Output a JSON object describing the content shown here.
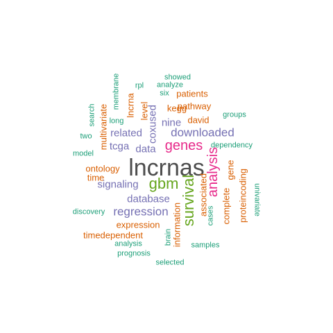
{
  "colors": {
    "dark": "#4d4d4d",
    "green": "#1b9e77",
    "orange": "#d95f02",
    "purple": "#7570b3",
    "magenta": "#e7298a",
    "lime": "#66a61e"
  },
  "words": [
    {
      "text": "lncrnas",
      "color": "dark",
      "weight": 6
    },
    {
      "text": "genes",
      "color": "magenta",
      "weight": 3
    },
    {
      "text": "analysis",
      "color": "magenta",
      "weight": 3
    },
    {
      "text": "gbm",
      "color": "lime",
      "weight": 3
    },
    {
      "text": "survival",
      "color": "lime",
      "weight": 3
    },
    {
      "text": "downloaded",
      "color": "purple",
      "weight": 2
    },
    {
      "text": "regression",
      "color": "purple",
      "weight": 2
    },
    {
      "text": "database",
      "color": "purple",
      "weight": 2
    },
    {
      "text": "signaling",
      "color": "purple",
      "weight": 2
    },
    {
      "text": "related",
      "color": "purple",
      "weight": 2
    },
    {
      "text": "coxused",
      "color": "purple",
      "weight": 2
    },
    {
      "text": "nine",
      "color": "purple",
      "weight": 2
    },
    {
      "text": "tcga",
      "color": "purple",
      "weight": 2
    },
    {
      "text": "data",
      "color": "purple",
      "weight": 2
    },
    {
      "text": "expression",
      "color": "orange",
      "weight": 1
    },
    {
      "text": "timedependent",
      "color": "orange",
      "weight": 1
    },
    {
      "text": "ontology",
      "color": "orange",
      "weight": 1
    },
    {
      "text": "time",
      "color": "orange",
      "weight": 1
    },
    {
      "text": "patients",
      "color": "orange",
      "weight": 1
    },
    {
      "text": "pathway",
      "color": "orange",
      "weight": 1
    },
    {
      "text": "kegg",
      "color": "orange",
      "weight": 1
    },
    {
      "text": "david",
      "color": "orange",
      "weight": 1
    },
    {
      "text": "level",
      "color": "orange",
      "weight": 1
    },
    {
      "text": "lncrna",
      "color": "orange",
      "weight": 1
    },
    {
      "text": "multivariate",
      "color": "orange",
      "weight": 1
    },
    {
      "text": "gene",
      "color": "orange",
      "weight": 1
    },
    {
      "text": "complete",
      "color": "orange",
      "weight": 1
    },
    {
      "text": "proteincoding",
      "color": "orange",
      "weight": 1
    },
    {
      "text": "information",
      "color": "orange",
      "weight": 1
    },
    {
      "text": "associated",
      "color": "orange",
      "weight": 1
    },
    {
      "text": "showed",
      "color": "green",
      "weight": 0
    },
    {
      "text": "analyze",
      "color": "green",
      "weight": 0
    },
    {
      "text": "rpl",
      "color": "green",
      "weight": 0
    },
    {
      "text": "six",
      "color": "green",
      "weight": 0
    },
    {
      "text": "membrane",
      "color": "green",
      "weight": 0
    },
    {
      "text": "search",
      "color": "green",
      "weight": 0
    },
    {
      "text": "long",
      "color": "green",
      "weight": 0
    },
    {
      "text": "groups",
      "color": "green",
      "weight": 0
    },
    {
      "text": "two",
      "color": "green",
      "weight": 0
    },
    {
      "text": "dependency",
      "color": "green",
      "weight": 0
    },
    {
      "text": "model",
      "color": "green",
      "weight": 0
    },
    {
      "text": "univariate",
      "color": "green",
      "weight": 0
    },
    {
      "text": "discovery",
      "color": "green",
      "weight": 0
    },
    {
      "text": "cases",
      "color": "green",
      "weight": 0
    },
    {
      "text": "brain",
      "color": "green",
      "weight": 0
    },
    {
      "text": "samples",
      "color": "green",
      "weight": 0
    },
    {
      "text": "analysis",
      "color": "green",
      "weight": 0
    },
    {
      "text": "prognosis",
      "color": "green",
      "weight": 0
    },
    {
      "text": "selected",
      "color": "green",
      "weight": 0
    }
  ]
}
